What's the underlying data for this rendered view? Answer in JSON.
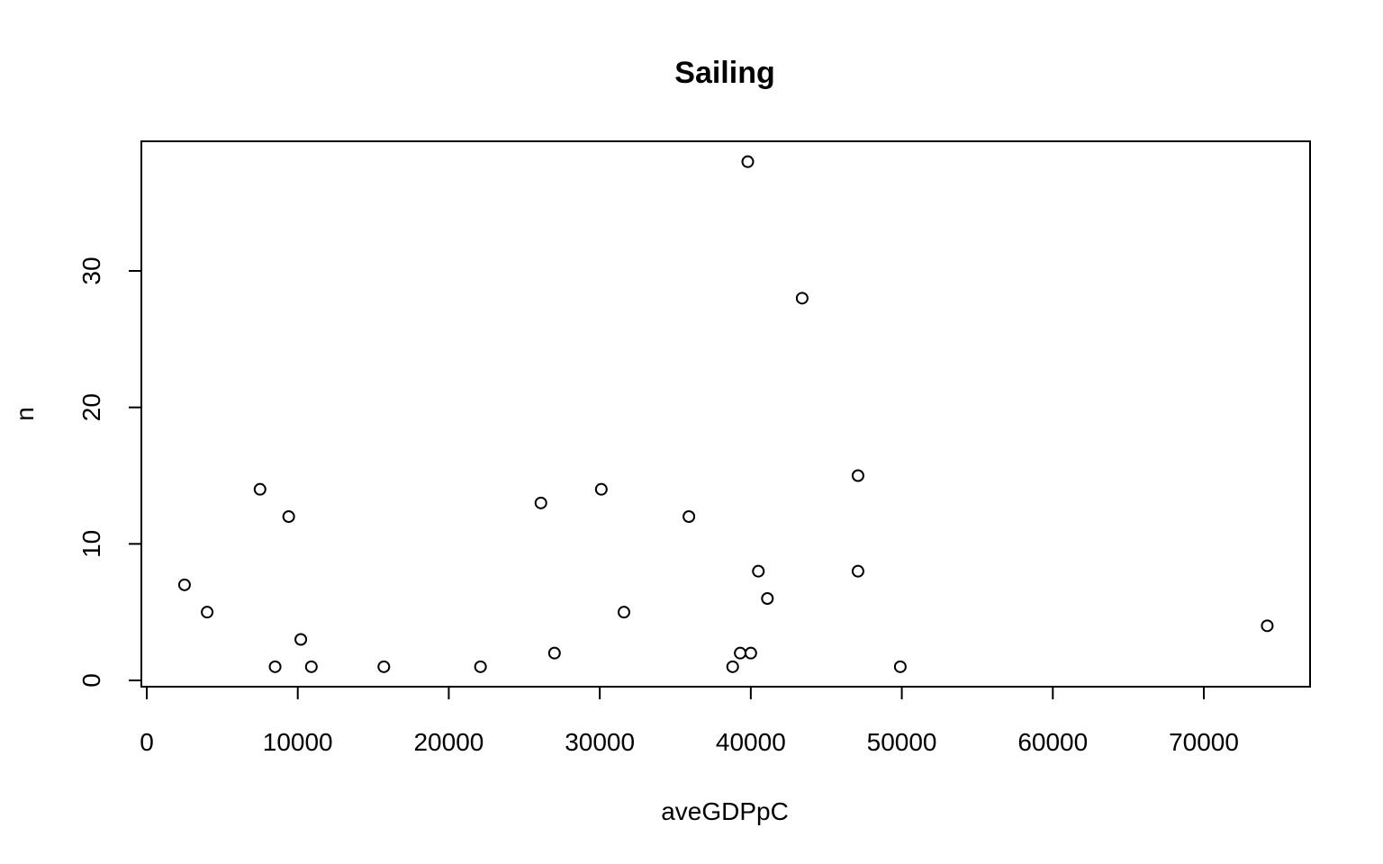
{
  "chart_data": {
    "type": "scatter",
    "title": "Sailing",
    "xlabel": "aveGDPpC",
    "ylabel": "n",
    "xlim": [
      0,
      77000
    ],
    "ylim": [
      0,
      40
    ],
    "xticks": [
      0,
      10000,
      20000,
      30000,
      40000,
      50000,
      60000,
      70000
    ],
    "yticks": [
      0,
      10,
      20,
      30
    ],
    "grid": false,
    "points": [
      {
        "x": 2500,
        "y": 7
      },
      {
        "x": 4000,
        "y": 5
      },
      {
        "x": 7500,
        "y": 14
      },
      {
        "x": 8500,
        "y": 1
      },
      {
        "x": 9400,
        "y": 12
      },
      {
        "x": 10200,
        "y": 3
      },
      {
        "x": 10900,
        "y": 1
      },
      {
        "x": 15700,
        "y": 1
      },
      {
        "x": 22100,
        "y": 1
      },
      {
        "x": 26100,
        "y": 13
      },
      {
        "x": 27000,
        "y": 2
      },
      {
        "x": 30100,
        "y": 14
      },
      {
        "x": 31600,
        "y": 5
      },
      {
        "x": 35900,
        "y": 12
      },
      {
        "x": 38800,
        "y": 1
      },
      {
        "x": 39300,
        "y": 2
      },
      {
        "x": 39800,
        "y": 38
      },
      {
        "x": 40000,
        "y": 2
      },
      {
        "x": 40500,
        "y": 8
      },
      {
        "x": 41100,
        "y": 6
      },
      {
        "x": 43400,
        "y": 28
      },
      {
        "x": 47100,
        "y": 15
      },
      {
        "x": 47100,
        "y": 8
      },
      {
        "x": 49900,
        "y": 1
      },
      {
        "x": 74200,
        "y": 4
      }
    ]
  }
}
